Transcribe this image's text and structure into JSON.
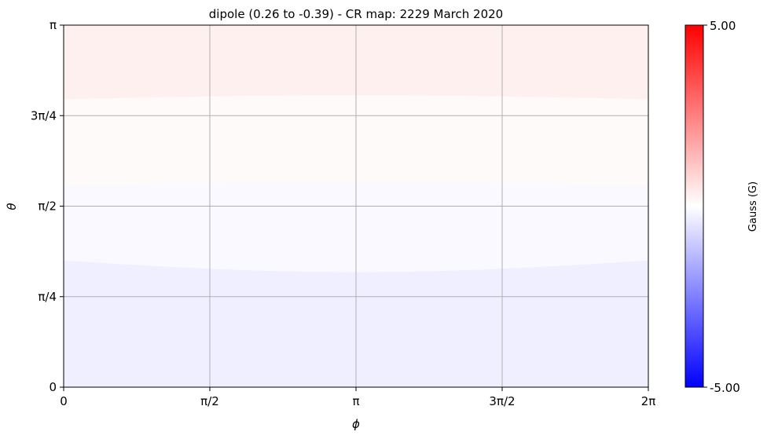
{
  "chart_data": {
    "type": "heatmap",
    "title": "dipole (0.26 to -0.39) - CR map: 2229 March 2020",
    "xlabel": "ϕ",
    "ylabel": "θ",
    "xlim": [
      0,
      6.283185
    ],
    "ylim": [
      0,
      3.141593
    ],
    "x_ticks": [
      {
        "value": 0,
        "label": "0"
      },
      {
        "value": 1.570796,
        "label": "π/2"
      },
      {
        "value": 3.141593,
        "label": "π"
      },
      {
        "value": 4.712389,
        "label": "3π/2"
      },
      {
        "value": 6.283185,
        "label": "2π"
      }
    ],
    "y_ticks": [
      {
        "value": 0,
        "label": "0"
      },
      {
        "value": 0.785398,
        "label": "π/4"
      },
      {
        "value": 1.570796,
        "label": "π/2"
      },
      {
        "value": 2.356194,
        "label": "3π/4"
      },
      {
        "value": 3.141593,
        "label": "π"
      }
    ],
    "grid": true,
    "bands": [
      {
        "value_range": [
          -0.39,
          -0.26
        ],
        "theta_edges": [
          0,
          1.1
        ]
      },
      {
        "value_range": [
          -0.26,
          0.0
        ],
        "theta_edges": [
          1.1,
          1.75
        ]
      },
      {
        "value_range": [
          0.0,
          0.13
        ],
        "theta_edges": [
          1.75,
          2.5
        ]
      },
      {
        "value_range": [
          0.13,
          0.26
        ],
        "theta_edges": [
          2.5,
          3.141593
        ]
      }
    ],
    "boundary_bulge": 0.1,
    "band_colors": [
      "#efefff",
      "#f9f9ff",
      "#fffafa",
      "#fff0f0"
    ],
    "colorbar": {
      "label": "Gauss (G)",
      "vmin": -5.0,
      "vmax": 5.0,
      "min_label": "-5.00",
      "max_label": "5.00",
      "colors": [
        "#0000ff",
        "#ffffff",
        "#ff0000"
      ]
    },
    "grid_color": "#b0b0b0"
  }
}
